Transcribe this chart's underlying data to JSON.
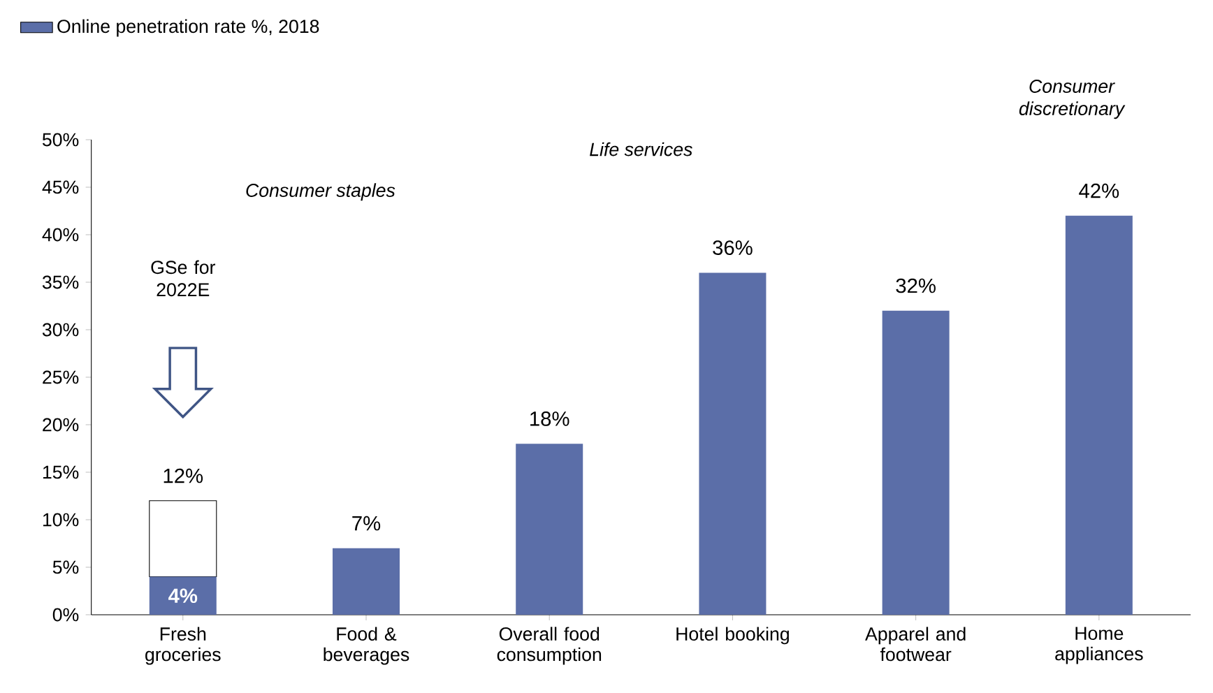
{
  "chart_data": {
    "type": "bar",
    "stacked": true,
    "legend": "top left",
    "categories": [
      "Fresh groceries",
      "Food & beverages",
      "Overall food consumption",
      "Hotel booking",
      "Apparel and footwear",
      "Home appliances"
    ],
    "series": [
      {
        "name": "Online penetration rate %, 2018",
        "color": "#5b6ea8",
        "values": [
          4,
          7,
          18,
          36,
          32,
          42
        ],
        "value_labels": [
          "4%",
          "7%",
          "18%",
          "36%",
          "32%",
          "42%"
        ]
      },
      {
        "color": "#ffffff",
        "values": [
          8,
          null,
          null,
          null,
          null,
          null
        ]
      }
    ],
    "totals": [
      "12%",
      null,
      null,
      null,
      null,
      null
    ],
    "ylim": [
      0,
      50
    ],
    "yticks": [
      {
        "value": 0,
        "label": "0%"
      },
      {
        "value": 5,
        "label": "5%"
      },
      {
        "value": 10,
        "label": "10%"
      },
      {
        "value": 15,
        "label": "15%"
      },
      {
        "value": 20,
        "label": "20%"
      },
      {
        "value": 25,
        "label": "25%"
      },
      {
        "value": 30,
        "label": "30%"
      },
      {
        "value": 35,
        "label": "35%"
      },
      {
        "value": 40,
        "label": "40%"
      },
      {
        "value": 45,
        "label": "45%"
      },
      {
        "value": 50,
        "label": "50%"
      }
    ],
    "annotations": [
      "GSe for 2022E",
      "Consumer staples",
      "Life services",
      "Consumer discretionary"
    ],
    "grid": false
  }
}
